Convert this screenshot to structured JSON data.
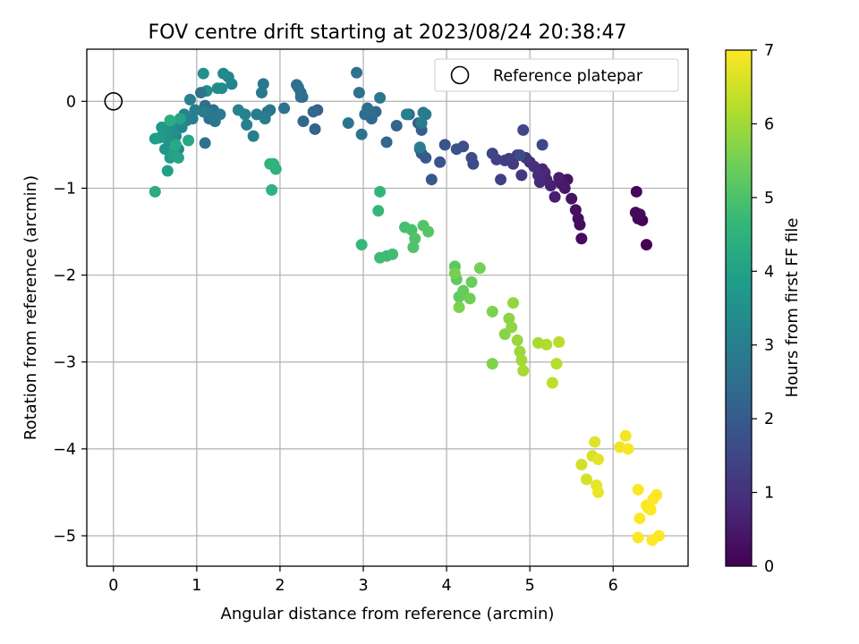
{
  "chart_data": {
    "type": "scatter",
    "title": "FOV centre drift starting at 2023/08/24 20:38:47",
    "xlabel": "Angular distance from reference (arcmin)",
    "ylabel": "Rotation from reference (arcmin)",
    "xlim": [
      -0.32,
      6.9
    ],
    "ylim": [
      -5.35,
      0.6
    ],
    "xticks": [
      0,
      1,
      2,
      3,
      4,
      5,
      6
    ],
    "yticks": [
      0,
      -1,
      -2,
      -3,
      -4,
      -5
    ],
    "xtick_labels": [
      "0",
      "1",
      "2",
      "3",
      "4",
      "5",
      "6"
    ],
    "ytick_labels": [
      "0",
      "−1",
      "−2",
      "−3",
      "−4",
      "−5"
    ],
    "grid": true,
    "legend": {
      "position": "top-right",
      "entries": [
        "Reference platepar"
      ]
    },
    "reference_point": {
      "x": 0,
      "y": 0,
      "label": "Reference platepar"
    },
    "colorbar": {
      "label": "Hours from first FF file",
      "colormap": "viridis",
      "range": [
        0,
        7
      ],
      "ticks": [
        0,
        1,
        2,
        3,
        4,
        5,
        6,
        7
      ],
      "tick_labels": [
        "0",
        "1",
        "2",
        "3",
        "4",
        "5",
        "6",
        "7"
      ]
    },
    "colors": {
      "viridis": [
        "#440154",
        "#482878",
        "#3e4989",
        "#31688e",
        "#26828e",
        "#1f9e89",
        "#35b779",
        "#6ece58",
        "#b5de2b",
        "#fde725"
      ]
    },
    "series": [
      {
        "hours": [
          0.0,
          0.05,
          0.1,
          0.12,
          0.15,
          0.18,
          0.2,
          0.22,
          0.25,
          0.3,
          0.35,
          0.4,
          0.45,
          0.5,
          0.55,
          0.6,
          0.65,
          0.7,
          0.75,
          0.8,
          0.85,
          0.9,
          0.95,
          1.0,
          1.05,
          1.1,
          1.15,
          1.2,
          1.25,
          1.3,
          1.35,
          1.4,
          1.45,
          1.5,
          1.55,
          1.6
        ],
        "x": [
          6.4,
          6.35,
          6.3,
          6.28,
          6.32,
          6.27,
          5.62,
          5.6,
          5.58,
          5.55,
          5.5,
          5.45,
          5.42,
          5.38,
          5.35,
          5.3,
          5.25,
          5.2,
          5.18,
          5.15,
          5.12,
          5.1,
          5.05,
          5.0,
          4.95,
          4.9,
          4.85,
          4.8,
          4.75,
          4.7,
          4.65,
          4.6,
          4.55,
          4.92,
          5.15,
          4.88
        ],
        "y": [
          -1.65,
          -1.37,
          -1.35,
          -1.04,
          -1.3,
          -1.28,
          -1.58,
          -1.42,
          -1.35,
          -1.25,
          -1.12,
          -0.9,
          -1.0,
          -0.95,
          -0.88,
          -1.1,
          -0.97,
          -0.9,
          -0.82,
          -0.78,
          -0.93,
          -0.85,
          -0.75,
          -0.7,
          -0.65,
          -0.85,
          -0.62,
          -0.72,
          -0.66,
          -0.68,
          -0.9,
          -0.67,
          -0.6,
          -0.33,
          -0.5,
          -0.62
        ]
      },
      {
        "hours": [
          1.6,
          1.65,
          1.7,
          1.75,
          1.8,
          1.85,
          1.9,
          1.95,
          2.0,
          2.05,
          2.1,
          2.15,
          2.2,
          2.25,
          2.3,
          2.35,
          2.4,
          2.45,
          2.5,
          2.55,
          2.6,
          2.65,
          2.7,
          2.75,
          2.8,
          2.85,
          2.9,
          2.95,
          3.0,
          3.05
        ],
        "x": [
          4.32,
          4.3,
          4.2,
          4.12,
          3.98,
          3.92,
          3.82,
          3.75,
          3.7,
          3.68,
          3.7,
          3.66,
          3.55,
          3.4,
          3.28,
          3.15,
          3.1,
          3.05,
          3.02,
          3.08,
          2.95,
          2.92,
          2.82,
          2.98,
          3.2,
          3.72,
          3.75,
          3.7,
          3.68,
          3.52
        ],
        "y": [
          -0.72,
          -0.65,
          -0.52,
          -0.55,
          -0.5,
          -0.7,
          -0.9,
          -0.65,
          -0.6,
          -0.55,
          -0.33,
          -0.25,
          -0.15,
          -0.28,
          -0.47,
          -0.12,
          -0.2,
          -0.08,
          -0.15,
          -0.12,
          0.1,
          0.33,
          -0.25,
          -0.38,
          0.04,
          -0.13,
          -0.15,
          -0.25,
          -0.53,
          -0.15
        ]
      },
      {
        "hours": [
          2.2,
          2.25,
          2.3,
          2.35,
          2.4,
          2.45,
          2.5,
          2.55,
          2.6,
          2.65,
          2.7,
          2.75,
          2.8,
          2.85,
          2.9,
          2.95,
          3.0,
          3.05,
          3.1,
          3.15,
          3.2,
          3.25,
          3.3,
          3.35,
          3.4,
          3.45,
          3.5
        ],
        "x": [
          2.45,
          2.42,
          2.4,
          2.28,
          2.25,
          2.2,
          2.25,
          2.27,
          2.22,
          2.05,
          1.85,
          1.88,
          1.8,
          1.78,
          1.72,
          1.82,
          1.68,
          1.6,
          1.58,
          1.5,
          1.42,
          1.38,
          1.32,
          1.3,
          1.25,
          1.12,
          1.08
        ],
        "y": [
          -0.1,
          -0.32,
          -0.12,
          -0.23,
          0.1,
          0.19,
          0.05,
          0.05,
          0.16,
          -0.08,
          -0.12,
          -0.1,
          0.2,
          0.1,
          -0.15,
          -0.2,
          -0.4,
          -0.27,
          -0.15,
          -0.1,
          0.2,
          0.28,
          0.32,
          0.15,
          0.15,
          0.12,
          0.32
        ]
      },
      {
        "hours": [
          2.5,
          2.55,
          2.6,
          2.65,
          2.7,
          2.75,
          2.8,
          2.85,
          2.9,
          2.95,
          3.0,
          3.05,
          3.1,
          3.15,
          3.2,
          3.25,
          3.3,
          3.35,
          3.4,
          3.45,
          3.5,
          3.55,
          3.6,
          3.65,
          3.7,
          3.75,
          3.8,
          3.85,
          3.9,
          3.95,
          4.0,
          4.05,
          4.1,
          4.15,
          4.2
        ],
        "x": [
          1.2,
          1.15,
          1.1,
          1.1,
          1.05,
          1.22,
          1.18,
          1.28,
          1.08,
          0.98,
          0.95,
          0.92,
          0.88,
          0.85,
          0.82,
          0.8,
          0.78,
          0.75,
          0.72,
          0.7,
          0.68,
          0.66,
          0.65,
          0.62,
          0.6,
          0.58,
          0.55,
          0.5,
          0.68,
          0.65,
          0.72,
          0.78,
          0.8,
          0.9,
          0.75
        ],
        "y": [
          -0.1,
          -0.2,
          -0.05,
          -0.48,
          0.1,
          -0.23,
          -0.15,
          -0.15,
          -0.12,
          -0.1,
          -0.2,
          0.02,
          -0.22,
          -0.15,
          -0.3,
          -0.25,
          -0.55,
          -0.4,
          -0.38,
          -0.3,
          -0.25,
          -0.45,
          -0.35,
          -0.55,
          -0.4,
          -0.3,
          -0.42,
          -0.43,
          -0.65,
          -0.8,
          -0.6,
          -0.65,
          -0.2,
          -0.45,
          -0.5
        ]
      },
      {
        "hours": [
          4.3,
          4.35,
          4.4,
          4.45,
          4.5,
          4.55
        ],
        "x": [
          0.5,
          0.68,
          1.92,
          1.95,
          1.9,
          1.88
        ],
        "y": [
          -1.04,
          -0.22,
          -0.72,
          -0.78,
          -1.02,
          -0.72
        ]
      },
      {
        "hours": [
          4.6,
          4.65,
          4.7,
          4.75,
          4.8,
          4.85,
          4.9,
          4.95,
          5.0,
          5.05,
          5.1,
          5.15,
          5.2,
          5.25,
          5.3,
          5.35,
          5.4,
          5.45,
          5.5,
          5.55,
          5.6
        ],
        "x": [
          3.2,
          3.18,
          2.98,
          3.28,
          3.2,
          3.35,
          3.5,
          3.58,
          3.62,
          3.6,
          3.72,
          3.78,
          4.1,
          4.12,
          4.15,
          4.2,
          4.3,
          4.28,
          4.4,
          4.1,
          4.15
        ],
        "y": [
          -1.04,
          -1.26,
          -1.65,
          -1.78,
          -1.8,
          -1.76,
          -1.45,
          -1.48,
          -1.58,
          -1.68,
          -1.43,
          -1.5,
          -1.9,
          -2.05,
          -2.25,
          -2.18,
          -2.08,
          -2.27,
          -1.92,
          -1.98,
          -2.37
        ]
      },
      {
        "hours": [
          5.6,
          5.65,
          5.7,
          5.75,
          5.8,
          5.85,
          5.9,
          5.95,
          6.0,
          6.05,
          6.1,
          6.15,
          6.2,
          6.25,
          6.3
        ],
        "x": [
          4.55,
          4.55,
          4.7,
          4.75,
          4.78,
          4.8,
          4.85,
          4.88,
          4.9,
          4.92,
          5.1,
          5.2,
          5.32,
          5.35,
          5.27
        ],
        "y": [
          -2.42,
          -3.02,
          -2.68,
          -2.5,
          -2.6,
          -2.32,
          -2.75,
          -2.88,
          -2.98,
          -3.1,
          -2.78,
          -2.8,
          -3.02,
          -2.77,
          -3.24
        ]
      },
      {
        "hours": [
          6.5,
          6.55,
          6.6,
          6.65,
          6.7,
          6.75,
          6.8,
          6.85,
          6.9,
          6.95,
          7.0,
          7.0,
          7.0,
          7.0,
          7.0,
          7.0,
          7.0,
          7.0,
          7.0,
          7.0
        ],
        "x": [
          5.62,
          5.68,
          5.75,
          5.78,
          5.82,
          5.8,
          5.82,
          6.08,
          6.15,
          6.18,
          6.3,
          6.32,
          6.3,
          6.4,
          6.45,
          6.48,
          6.52,
          6.55,
          6.47,
          6.42
        ],
        "y": [
          -4.18,
          -4.35,
          -4.08,
          -3.92,
          -4.12,
          -4.42,
          -4.5,
          -3.98,
          -3.85,
          -4.0,
          -4.47,
          -4.8,
          -5.02,
          -4.65,
          -4.7,
          -4.58,
          -4.53,
          -5.0,
          -5.05,
          -4.68
        ]
      }
    ]
  }
}
